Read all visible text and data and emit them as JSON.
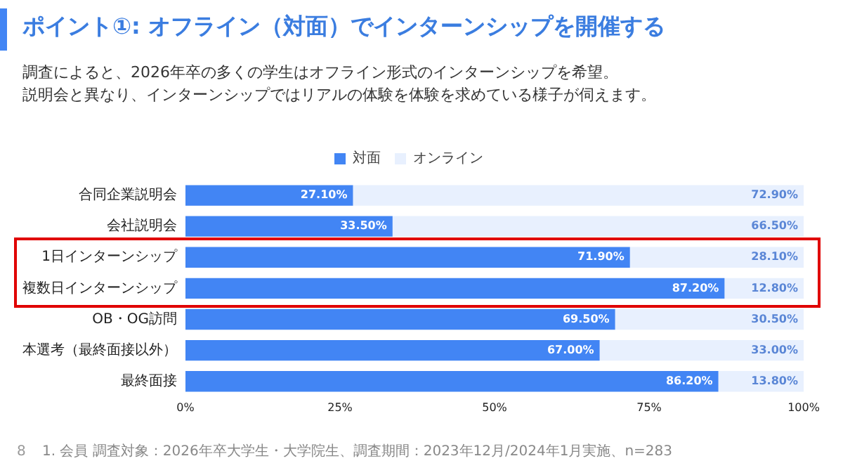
{
  "chart_data": {
    "type": "bar",
    "orientation": "horizontal",
    "stacked": true,
    "title": "ポイント①: オフライン（対面）でインターンシップを開催する",
    "subtitle": "調査によると、2026年卒の多くの学生はオフライン形式のインターンシップを希望。",
    "categories": [
      "合同企業説明会",
      "会社説明会",
      "1日インターンシップ",
      "複数日インターンシップ",
      "OB・OG訪問",
      "本選考（最終面接以外）",
      "最終面接"
    ],
    "series": [
      {
        "name": "対面",
        "color": "#4285f4",
        "values": [
          27.1,
          33.5,
          71.9,
          87.2,
          69.5,
          67.0,
          86.2
        ],
        "value_labels": [
          "27.10%",
          "33.50%",
          "71.90%",
          "87.20%",
          "69.50%",
          "67.00%",
          "86.20%"
        ]
      },
      {
        "name": "オンライン",
        "color": "#e8f0fe",
        "values": [
          72.9,
          66.5,
          28.1,
          12.8,
          30.5,
          33.0,
          13.8
        ],
        "value_labels": [
          "72.90%",
          "66.50%",
          "28.10%",
          "12.80%",
          "30.50%",
          "33.00%",
          "13.80%"
        ]
      }
    ],
    "xlim": [
      0,
      100
    ],
    "xticks": [
      {
        "value": 0,
        "label": "0%"
      },
      {
        "value": 25,
        "label": "25%"
      },
      {
        "value": 50,
        "label": "50%"
      },
      {
        "value": 75,
        "label": "75%"
      },
      {
        "value": 100,
        "label": "100%"
      }
    ],
    "grid": false,
    "legend": "top",
    "annotations": [
      "説明会と異なり、インターンシップではリアルの体験を体験を求めている様子が伺えます。",
      "1. 会員 調査対象：2026年卒大学生・大学院生、調査期間：2023年12月/2024年1月実施、n=283",
      "8"
    ]
  }
}
